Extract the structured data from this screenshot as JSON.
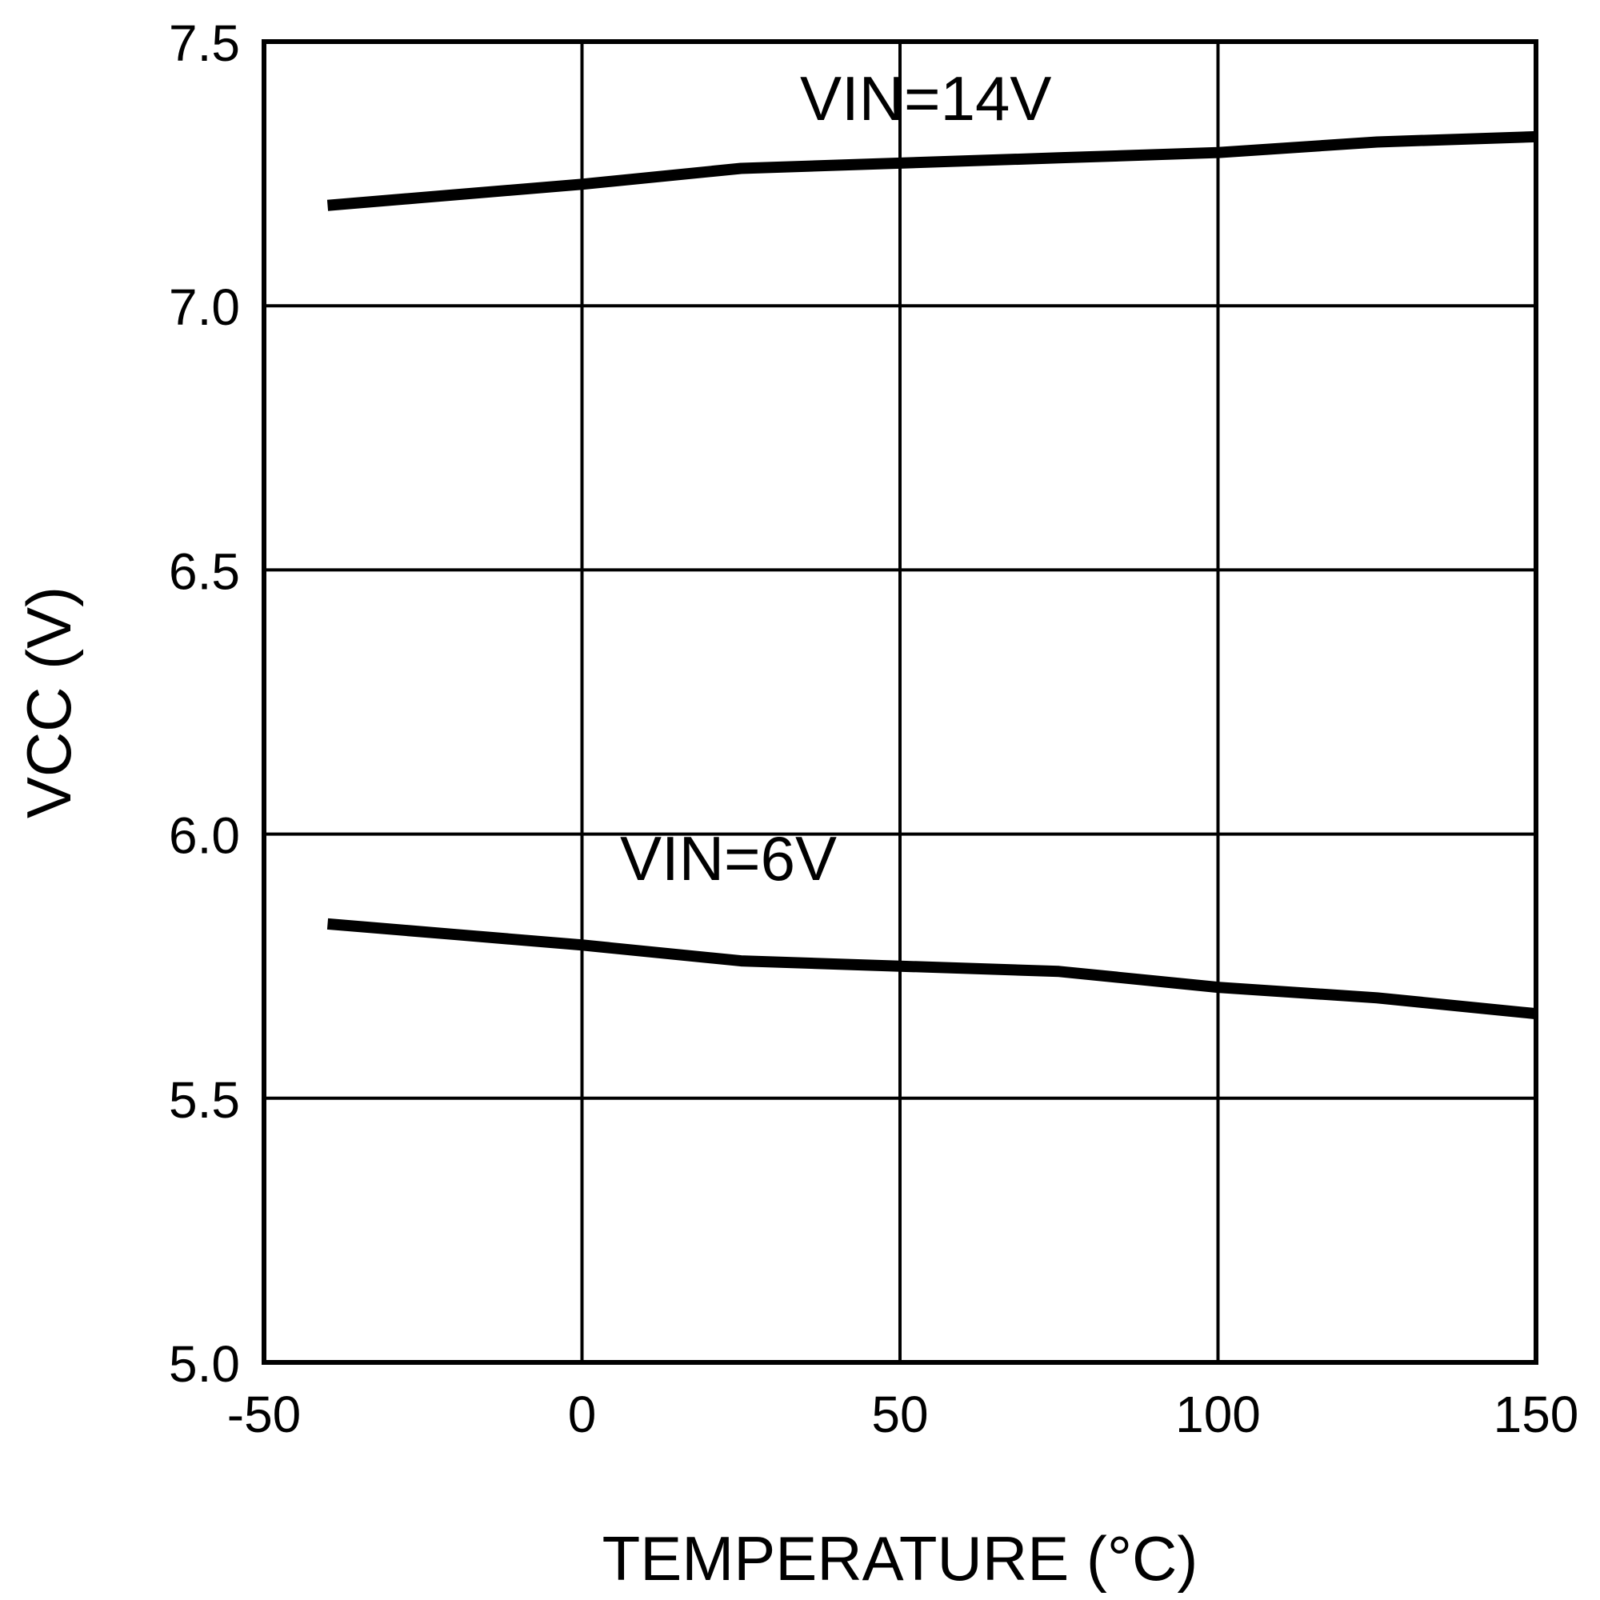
{
  "chart_data": {
    "type": "line",
    "title": "",
    "xlabel": "TEMPERATURE (°C)",
    "ylabel": "VCC (V)",
    "xlim": [
      -50,
      150
    ],
    "ylim": [
      5.0,
      7.5
    ],
    "x_ticks": [
      "-50",
      "0",
      "50",
      "100",
      "150"
    ],
    "y_ticks": [
      "7.5",
      "7.0",
      "6.5",
      "6.0",
      "5.5",
      "5.0"
    ],
    "grid": true,
    "x": [
      -40,
      -20,
      0,
      25,
      50,
      75,
      100,
      125,
      150
    ],
    "series": [
      {
        "name": "VIN=14V",
        "values": [
          7.19,
          7.21,
          7.23,
          7.26,
          7.27,
          7.28,
          7.29,
          7.31,
          7.32
        ]
      },
      {
        "name": "VIN=6V",
        "values": [
          5.83,
          5.81,
          5.79,
          5.76,
          5.75,
          5.74,
          5.71,
          5.69,
          5.66
        ]
      }
    ],
    "annotations": [
      "VIN=14V",
      "VIN=6V"
    ]
  }
}
